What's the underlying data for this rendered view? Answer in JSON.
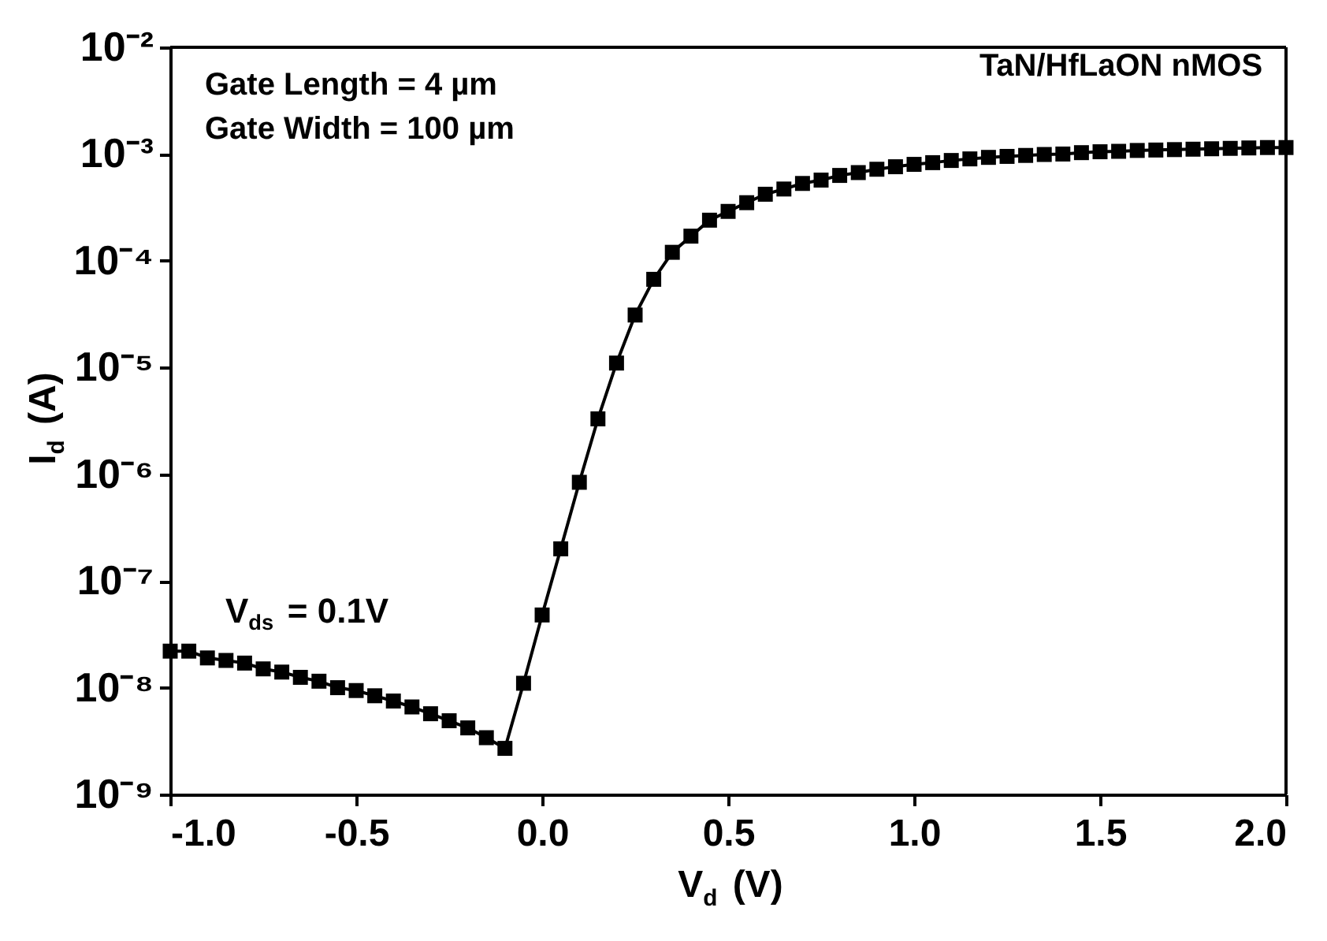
{
  "chart_data": {
    "type": "line",
    "xlabel": "V$_{d}$ (V)",
    "ylabel": "I$_{d}$ (A)",
    "x": [
      -1.0,
      -0.95,
      -0.9,
      -0.85,
      -0.8,
      -0.75,
      -0.7,
      -0.65,
      -0.6,
      -0.55,
      -0.5,
      -0.45,
      -0.4,
      -0.35,
      -0.3,
      -0.25,
      -0.2,
      -0.15,
      -0.1,
      -0.05,
      0.0,
      0.05,
      0.1,
      0.15,
      0.2,
      0.25,
      0.3,
      0.35,
      0.4,
      0.45,
      0.5,
      0.55,
      0.6,
      0.65,
      0.7,
      0.75,
      0.8,
      0.85,
      0.9,
      0.95,
      1.0,
      1.05,
      1.1,
      1.15,
      1.2,
      1.25,
      1.3,
      1.35,
      1.4,
      1.45,
      1.5,
      1.55,
      1.6,
      1.65,
      1.7,
      1.75,
      1.8,
      1.85,
      1.9,
      1.95,
      2.0
    ],
    "series": [
      {
        "color": "#000000",
        "values": [
          2.2e-08,
          2.2e-08,
          1.9e-08,
          1.8e-08,
          1.7e-08,
          1.5e-08,
          1.4e-08,
          1.25e-08,
          1.15e-08,
          1e-08,
          9.4e-09,
          8.4e-09,
          7.5e-09,
          6.6e-09,
          5.7e-09,
          4.9e-09,
          4.2e-09,
          3.4e-09,
          2.7e-09,
          1.1e-08,
          4.8e-08,
          2e-07,
          8.4e-07,
          3.3e-06,
          1.1e-05,
          3.1e-05,
          6.7e-05,
          0.00012,
          0.00017,
          0.00024,
          0.00029,
          0.00035,
          0.00042,
          0.00047,
          0.00053,
          0.00057,
          0.00063,
          0.00067,
          0.00072,
          0.00076,
          0.0008,
          0.00083,
          0.00087,
          0.0009,
          0.00093,
          0.00095,
          0.00097,
          0.00099,
          0.001,
          0.00103,
          0.00105,
          0.00106,
          0.00108,
          0.00109,
          0.0011,
          0.00111,
          0.00112,
          0.00113,
          0.00114,
          0.00115,
          0.00115
        ]
      }
    ],
    "log": "y",
    "xlim": [
      -1.0,
      2.0
    ],
    "xticks": [
      {
        "value": -1.0,
        "label": "-1.0"
      },
      -0.5,
      {
        "value": 0.0,
        "label": "0.0"
      },
      0.5,
      {
        "value": 1.0,
        "label": "1.0"
      },
      1.5,
      {
        "value": 2.0,
        "label": "2.0"
      }
    ],
    "ylim": [
      1e-09,
      0.01
    ],
    "yticks": [
      {
        "value": 1e-09,
        "label": "10⁻⁹"
      },
      {
        "value": 1e-08,
        "label": "10⁻⁸"
      },
      {
        "value": 1e-07,
        "label": "10⁻⁷"
      },
      {
        "value": 1e-06,
        "label": "10⁻⁶"
      },
      {
        "value": 1e-05,
        "label": "10⁻⁵"
      },
      {
        "value": 0.0001,
        "label": "10⁻⁴"
      },
      {
        "value": 0.001,
        "label": "10⁻³"
      },
      {
        "value": 0.01,
        "label": "10⁻²"
      }
    ],
    "annotations": [
      "Gate Length = 4 µm",
      "Gate Width = 100 µm",
      "TaN/HfLaON nMOS",
      "V$_{ds}$ = 0.1V"
    ],
    "marker": "square",
    "line_style": "solid",
    "grid": false
  }
}
